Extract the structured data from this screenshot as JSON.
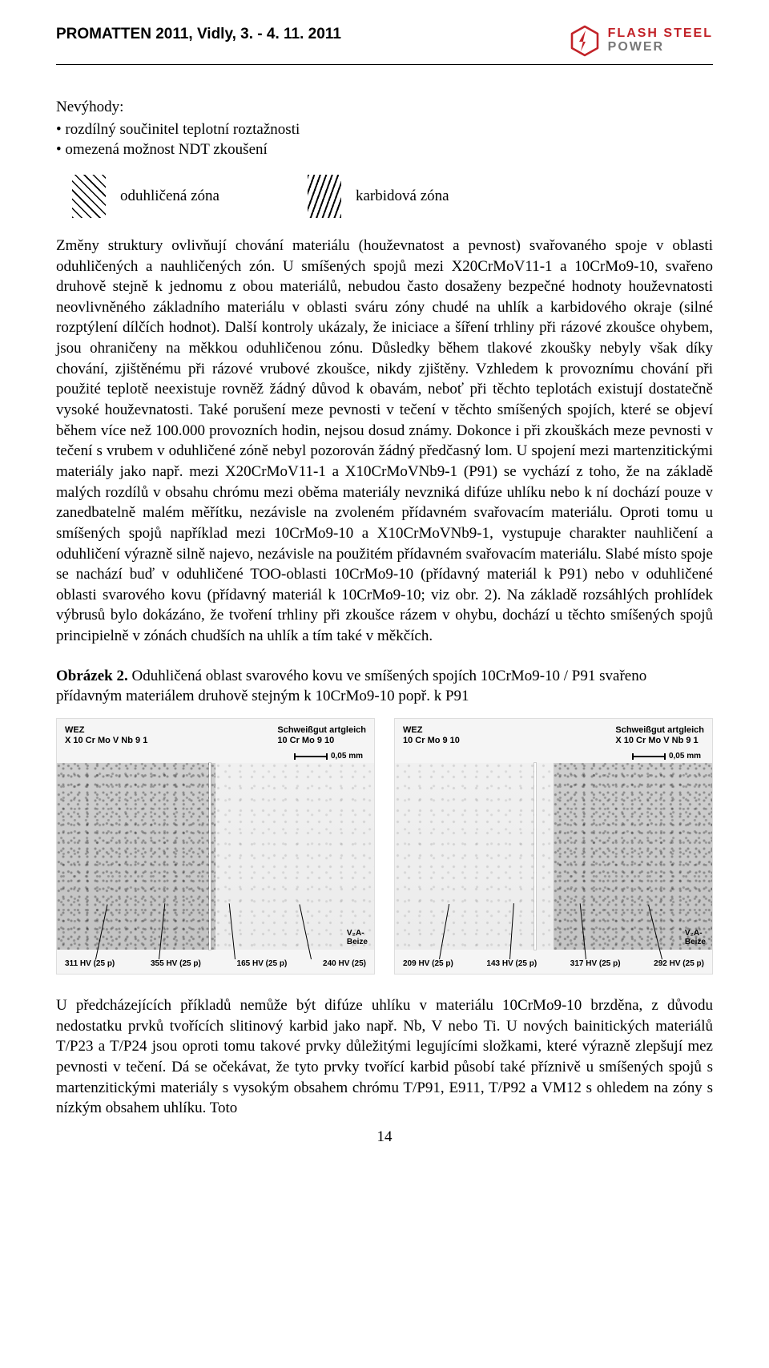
{
  "header": {
    "conference": "PROMATTEN 2011, Vidly, 3. - 4. 11. 2011",
    "logo_brand_top": "FLASH STEEL",
    "logo_brand_bottom": "POWER",
    "logo_color_brand": "#c22228",
    "logo_color_sub": "#777777"
  },
  "disadvantages": {
    "heading": "Nevýhody:",
    "items": [
      "• rozdílný součinitel teplotní roztažnosti",
      "• omezená možnost NDT zkoušení"
    ]
  },
  "zones": {
    "left_label": "oduhličená zóna",
    "right_label": "karbidová zóna"
  },
  "hatch_left": {
    "angle": 45
  },
  "hatch_right": {
    "angle": -70
  },
  "main_paragraph": "Změny struktury ovlivňují chování materiálu (houževnatost a pevnost) svařovaného spoje v oblasti oduhličených a nauhličených zón. U smíšených spojů mezi X20CrMoV11-1 a 10CrMo9-10, svařeno druhově stejně k jednomu z obou materiálů, nebudou často dosaženy bezpečné hodnoty houževnatosti neovlivněného základního materiálu v oblasti sváru zóny chudé na uhlík a karbidového okraje (silné rozptýlení dílčích hodnot). Další kontroly ukázaly, že iniciace a šíření trhliny při rázové zkoušce ohybem, jsou ohraničeny na měkkou oduhličenou zónu. Důsledky během tlakové zkoušky nebyly však díky chování, zjištěnému při rázové vrubové zkoušce, nikdy zjištěny. Vzhledem k provoznímu chování při použité teplotě neexistuje rovněž žádný důvod k obavám, neboť při těchto teplotách existují dostatečně vysoké houževnatosti. Také porušení meze pevnosti v tečení v těchto smíšených spojích, které se objeví během více než 100.000 provozních hodin, nejsou dosud známy. Dokonce i při zkouškách meze pevnosti v tečení s vrubem v oduhličené zóně nebyl pozorován žádný předčasný lom. U spojení mezi martenzitickými materiály jako např. mezi X20CrMoV11-1 a X10CrMoVNb9-1 (P91) se vychází z toho, že na základě malých rozdílů v obsahu chrómu mezi oběma materiály nevzniká difúze uhlíku nebo k ní dochází pouze v zanedbatelně malém měřítku, nezávisle na zvoleném přídavném svařovacím materiálu. Oproti tomu u smíšených spojů například mezi 10CrMo9-10 a X10CrMoVNb9-1, vystupuje charakter nauhličení a oduhličení výrazně silně najevo, nezávisle na použitém přídavném svařovacím materiálu. Slabé místo spoje se nachází buď v oduhličené TOO-oblasti 10CrMo9-10 (přídavný materiál k P91) nebo v oduhličené oblasti svarového kovu (přídavný materiál k 10CrMo9-10; viz obr. 2). Na základě rozsáhlých prohlídek výbrusů bylo dokázáno, že tvoření trhliny při zkoušce rázem v ohybu, dochází u těchto smíšených spojů principielně v zónách chudších na uhlík a tím také v měkčích.",
  "figure2": {
    "caption_bold": "Obrázek 2.",
    "caption_text": " Oduhličená oblast svarového kovu ve smíšených spojích 10CrMo9-10 / P91 svařeno přídavným materiálem druhově stejným k 10CrMo9-10 popř. k P91",
    "scale_label": "0,05 mm",
    "beize_label": "V₂A-\nBeize",
    "panel_left": {
      "top_left_l1": "WEZ",
      "top_left_l2": "X 10 Cr Mo V Nb 9 1",
      "top_right_l1": "Schweißgut artgleich",
      "top_right_l2": "10 Cr Mo 9 10",
      "hardness": [
        "311 HV (25 p)",
        "355 HV (25 p)",
        "165 HV (25 p)",
        "240 HV (25)"
      ]
    },
    "panel_right": {
      "top_left_l1": "WEZ",
      "top_left_l2": "10 Cr Mo 9 10",
      "top_right_l1": "Schweißgut artgleich",
      "top_right_l2": "X 10 Cr Mo V Nb 9 1",
      "hardness": [
        "209 HV (25 p)",
        "143 HV (25 p)",
        "317 HV (25 p)",
        "292 HV (25 p)"
      ]
    }
  },
  "closing_paragraph": "U předcházejících příkladů nemůže být difúze uhlíku v materiálu 10CrMo9-10 brzděna, z důvodu nedostatku prvků tvořících slitinový karbid jako např. Nb, V nebo Ti. U nových bainitických materiálů T/P23 a T/P24 jsou oproti tomu takové prvky důležitými legujícími složkami, které výrazně zlepšují mez pevnosti v tečení. Dá se očekávat, že tyto prvky tvořící karbid působí také příznivě u smíšených spojů s martenzitickými materiály s vysokým obsahem chrómu T/P91, E911, T/P92 a VM12 s ohledem na zóny s nízkým obsahem uhlíku. Toto",
  "page_number": "14"
}
